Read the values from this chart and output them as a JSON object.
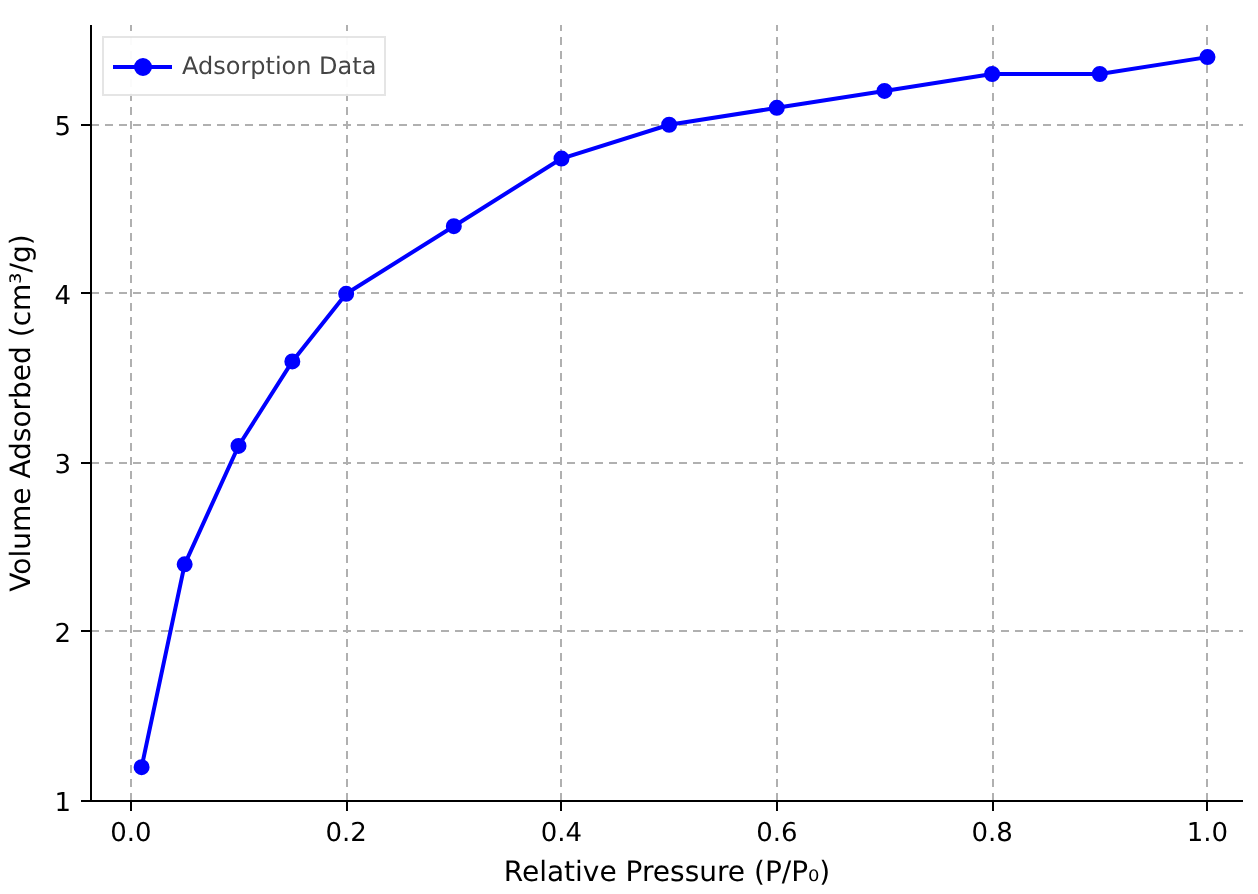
{
  "chart_data": {
    "type": "line",
    "xlabel": "Relative Pressure (P/P₀)",
    "ylabel": "Volume Adsorbed (cm³/g)",
    "x": [
      0.01,
      0.05,
      0.1,
      0.15,
      0.2,
      0.3,
      0.4,
      0.5,
      0.6,
      0.7,
      0.8,
      0.9,
      1.0
    ],
    "series": [
      {
        "name": "Adsorption Data",
        "color": "#0000ff",
        "values": [
          1.2,
          2.4,
          3.1,
          3.6,
          4.0,
          4.4,
          4.8,
          5.0,
          5.1,
          5.2,
          5.3,
          5.3,
          5.4
        ]
      }
    ],
    "xlim": [
      -0.037,
      1.033
    ],
    "ylim": [
      1,
      5.59
    ],
    "xticks": [
      {
        "value": 0,
        "label": "0.0"
      },
      0.2,
      0.4,
      0.6,
      0.8,
      {
        "value": 1,
        "label": "1.0"
      }
    ],
    "yticks": [
      1,
      2,
      3,
      4,
      5
    ],
    "grid": true,
    "legend": "top left",
    "marker": "circle",
    "line_style": "solid"
  }
}
